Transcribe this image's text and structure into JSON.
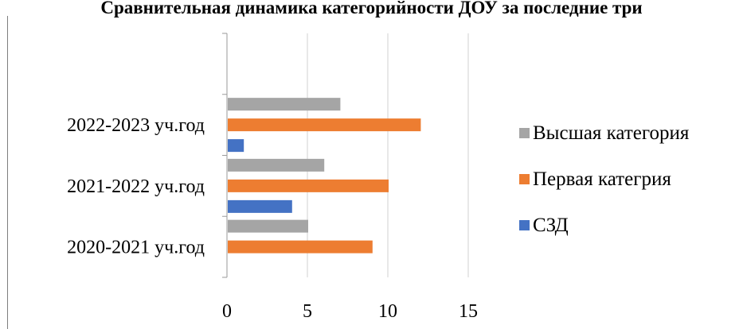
{
  "chart_data": {
    "type": "bar",
    "orientation": "horizontal",
    "title": "Сравнительная динамика категорийности ДОУ за последние три",
    "categories": [
      "2020-2021 уч.год",
      "2021-2022 уч.год",
      "2022-2023 уч.год"
    ],
    "series": [
      {
        "name": "СЗД",
        "values": [
          0,
          4,
          1
        ],
        "color": "#4472c4"
      },
      {
        "name": "Первая категрия",
        "values": [
          9,
          10,
          12
        ],
        "color": "#ed7d31"
      },
      {
        "name": "Высшая категория",
        "values": [
          5,
          6,
          7
        ],
        "color": "#a5a5a5"
      }
    ],
    "xlim": [
      0,
      15
    ],
    "x_ticks": [
      "0",
      "5",
      "10",
      "15"
    ],
    "grid": true,
    "legend_position": "right"
  }
}
